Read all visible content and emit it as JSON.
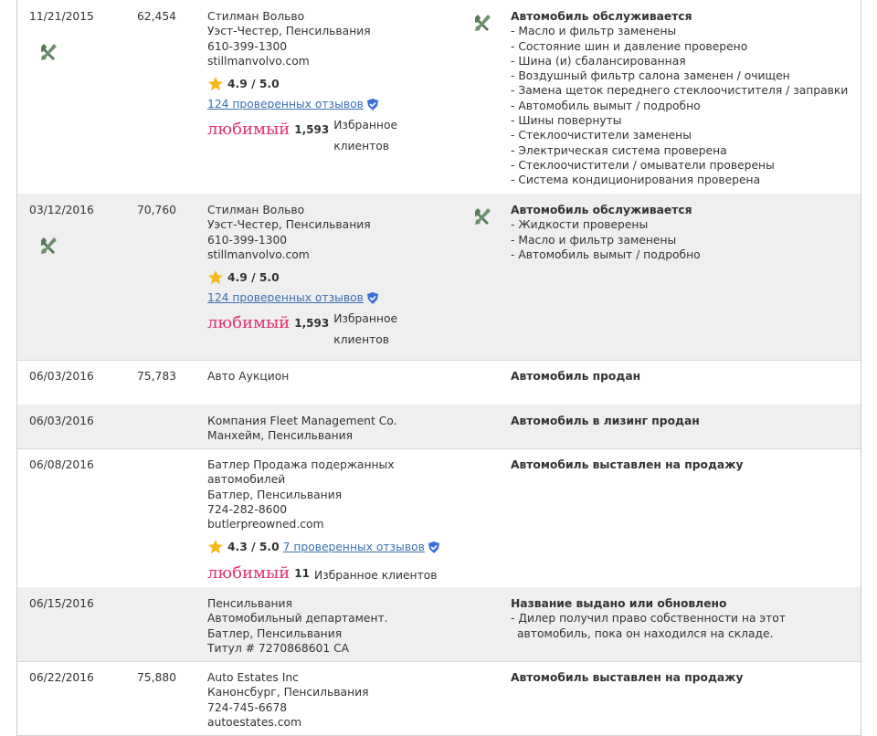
{
  "rows": [
    {
      "date": "11/21/2015",
      "mileage": "62,454",
      "source": [
        "Стилман Вольво",
        "Уэст-Честер, Пенсильвания",
        "610-399-1300",
        "stillmanvolvo.com"
      ],
      "rating": "4.9 / 5.0",
      "reviews": "124 проверенных отзывов",
      "favorite": "любимый",
      "favorite_count": "1,593",
      "favorite_label": "Избранное клиентов",
      "comment_title": "Автомобиль обслуживается",
      "comments": [
        "- Масло и фильтр заменены",
        "- Состояние шин и давление проверено",
        "- Шина (и) сбалансированная",
        "- Воздушный фильтр салона заменен / очищен",
        "- Замена щеток переднего стеклоочистителя / заправки",
        "- Автомобиль вымыт / подробно",
        "- Шины повернуты",
        "- Стеклоочистители заменены",
        "- Электрическая система проверена",
        "- Стеклоочистители / омыватели проверены",
        "- Система кондиционирования проверена"
      ]
    },
    {
      "date": "03/12/2016",
      "mileage": "70,760",
      "source": [
        "Стилман Вольво",
        "Уэст-Честер, Пенсильвания",
        "610-399-1300",
        "stillmanvolvo.com"
      ],
      "rating": "4.9 / 5.0",
      "reviews": "124 проверенных отзывов",
      "favorite": "любимый",
      "favorite_count": "1,593",
      "favorite_label": "Избранное клиентов",
      "comment_title": "Автомобиль обслуживается",
      "comments": [
        "- Жидкости проверены",
        "- Масло и фильтр заменены",
        "- Автомобиль вымыт / подробно"
      ]
    },
    {
      "date": "06/03/2016",
      "mileage": "75,783",
      "source": [
        "Авто Аукцион"
      ],
      "comment_title": "Автомобиль продан"
    },
    {
      "date": "06/03/2016",
      "source": [
        "Компания Fleet Management Co.",
        "Манхейм, Пенсильвания"
      ],
      "comment_title": "Автомобиль в лизинг продан"
    },
    {
      "date": "06/08/2016",
      "source": [
        "Батлер Продажа подержанных автомобилей",
        "Батлер, Пенсильвания",
        "724-282-8600",
        "butlerpreowned.com"
      ],
      "rating": "4.3 / 5.0",
      "reviews": "7 проверенных отзывов",
      "favorite": "любимый",
      "favorite_count": "11",
      "favorite_label": "Избранное клиентов",
      "comment_title": "Автомобиль выставлен на продажу"
    },
    {
      "date": "06/15/2016",
      "source": [
        "Пенсильвания",
        "Автомобильный департамент.",
        "Батлер, Пенсильвания",
        "Титул # 7270868601 CA"
      ],
      "comment_title": "Название выдано или обновлено",
      "comments": [
        "- Дилер получил право собственности на этот автомобиль, пока он находился на складе."
      ]
    },
    {
      "date": "06/22/2016",
      "mileage": "75,880",
      "source": [
        "Auto Estates Inc",
        "Канонсбург, Пенсильвания",
        "724-745-6678",
        "autoestates.com"
      ],
      "comment_title": "Автомобиль выставлен на продажу"
    }
  ]
}
